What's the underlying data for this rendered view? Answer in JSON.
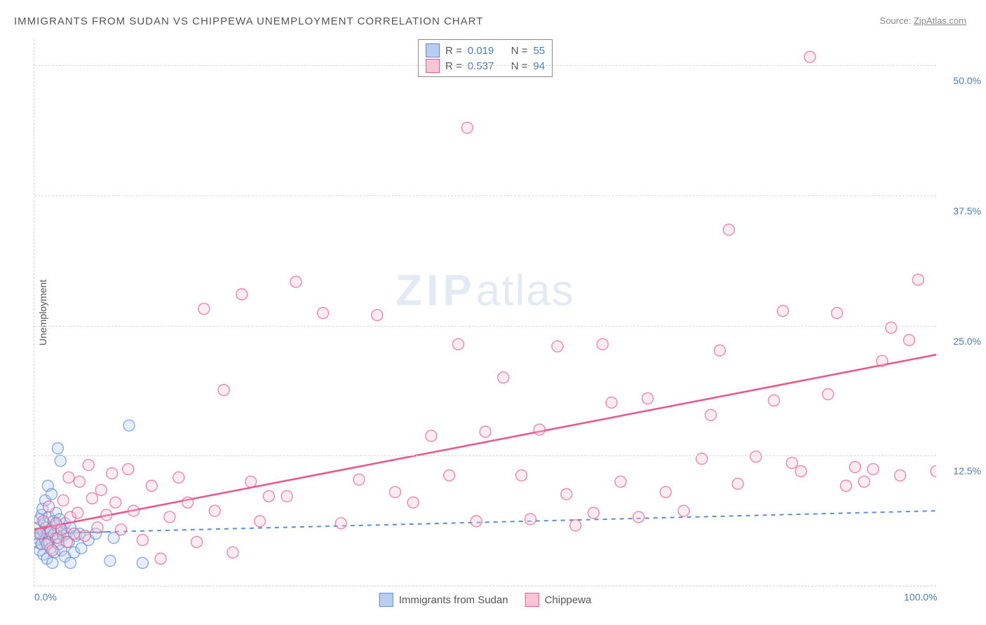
{
  "title": "IMMIGRANTS FROM SUDAN VS CHIPPEWA UNEMPLOYMENT CORRELATION CHART",
  "source_label": "Source:",
  "source_name": "ZipAtlas.com",
  "y_axis_label": "Unemployment",
  "watermark_zip": "ZIP",
  "watermark_atlas": "atlas",
  "chart": {
    "type": "scatter",
    "background_color": "#ffffff",
    "grid_color": "#d8d8d8",
    "grid_dash": "4,4",
    "xlim": [
      0,
      100
    ],
    "ylim": [
      0,
      52.5
    ],
    "x_ticks": [
      {
        "v": 0,
        "label": "0.0%"
      },
      {
        "v": 100,
        "label": "100.0%"
      }
    ],
    "y_ticks": [
      {
        "v": 12.5,
        "label": "12.5%"
      },
      {
        "v": 25.0,
        "label": "25.0%"
      },
      {
        "v": 37.5,
        "label": "37.5%"
      },
      {
        "v": 50.0,
        "label": "50.0%"
      }
    ],
    "tick_label_color": "#4a7ebb",
    "tick_fontsize": 14,
    "marker_radius": 8,
    "marker_opacity": 0.35,
    "marker_stroke_width": 1.4,
    "series": [
      {
        "name": "Immigrants from Sudan",
        "fill": "#b8cef0",
        "stroke": "#5b8dd6",
        "R": "0.019",
        "N": "55",
        "trend": {
          "y0": 5.0,
          "y1": 7.2,
          "stroke": "#5b8dd6",
          "width": 2,
          "dash": "6,6",
          "solid_until_x": 8
        },
        "points": [
          [
            0.2,
            5.0
          ],
          [
            0.3,
            4.6
          ],
          [
            0.5,
            5.6
          ],
          [
            0.5,
            4.1
          ],
          [
            0.6,
            6.4
          ],
          [
            0.6,
            3.4
          ],
          [
            0.7,
            5.0
          ],
          [
            0.8,
            6.8
          ],
          [
            0.8,
            4.0
          ],
          [
            0.9,
            7.4
          ],
          [
            1.0,
            5.2
          ],
          [
            1.0,
            3.0
          ],
          [
            1.1,
            6.0
          ],
          [
            1.2,
            4.4
          ],
          [
            1.2,
            8.2
          ],
          [
            1.3,
            5.6
          ],
          [
            1.4,
            2.6
          ],
          [
            1.5,
            5.0
          ],
          [
            1.5,
            9.6
          ],
          [
            1.6,
            4.2
          ],
          [
            1.6,
            6.6
          ],
          [
            1.8,
            3.6
          ],
          [
            1.8,
            5.4
          ],
          [
            1.9,
            8.8
          ],
          [
            2.0,
            4.8
          ],
          [
            2.0,
            2.2
          ],
          [
            2.1,
            6.2
          ],
          [
            2.2,
            5.0
          ],
          [
            2.2,
            3.2
          ],
          [
            2.4,
            7.0
          ],
          [
            2.4,
            4.6
          ],
          [
            2.5,
            5.8
          ],
          [
            2.6,
            13.2
          ],
          [
            2.7,
            4.0
          ],
          [
            2.8,
            6.4
          ],
          [
            2.9,
            12.0
          ],
          [
            3.0,
            5.2
          ],
          [
            3.0,
            3.4
          ],
          [
            3.2,
            4.8
          ],
          [
            3.4,
            2.8
          ],
          [
            3.4,
            6.0
          ],
          [
            3.6,
            5.0
          ],
          [
            3.8,
            4.2
          ],
          [
            4.0,
            2.2
          ],
          [
            4.0,
            5.6
          ],
          [
            4.4,
            3.2
          ],
          [
            4.6,
            4.8
          ],
          [
            5.0,
            5.0
          ],
          [
            5.2,
            3.6
          ],
          [
            6.0,
            4.4
          ],
          [
            6.8,
            5.0
          ],
          [
            8.4,
            2.4
          ],
          [
            8.8,
            4.6
          ],
          [
            10.5,
            15.4
          ],
          [
            12.0,
            2.2
          ]
        ]
      },
      {
        "name": "Chippewa",
        "fill": "#f6c6d6",
        "stroke": "#e75a8a",
        "R": "0.537",
        "N": "94",
        "trend": {
          "y0": 5.4,
          "y1": 22.2,
          "stroke": "#e75a8a",
          "width": 2.6,
          "dash": null,
          "solid_until_x": 100
        },
        "points": [
          [
            0.6,
            5.0
          ],
          [
            1.0,
            6.2
          ],
          [
            1.4,
            4.0
          ],
          [
            1.6,
            7.6
          ],
          [
            1.8,
            5.2
          ],
          [
            2.0,
            3.4
          ],
          [
            2.4,
            6.0
          ],
          [
            2.6,
            4.6
          ],
          [
            3.0,
            5.4
          ],
          [
            3.2,
            8.2
          ],
          [
            3.6,
            4.2
          ],
          [
            3.8,
            10.4
          ],
          [
            4.0,
            6.6
          ],
          [
            4.4,
            5.0
          ],
          [
            4.8,
            7.0
          ],
          [
            5.0,
            10.0
          ],
          [
            5.6,
            4.8
          ],
          [
            6.0,
            11.6
          ],
          [
            6.4,
            8.4
          ],
          [
            7.0,
            5.6
          ],
          [
            7.4,
            9.2
          ],
          [
            8.0,
            6.8
          ],
          [
            8.6,
            10.8
          ],
          [
            9.0,
            8.0
          ],
          [
            9.6,
            5.4
          ],
          [
            10.4,
            11.2
          ],
          [
            11.0,
            7.2
          ],
          [
            12.0,
            4.4
          ],
          [
            13.0,
            9.6
          ],
          [
            14.0,
            2.6
          ],
          [
            15.0,
            6.6
          ],
          [
            16.0,
            10.4
          ],
          [
            17.0,
            8.0
          ],
          [
            18.0,
            4.2
          ],
          [
            18.8,
            26.6
          ],
          [
            20.0,
            7.2
          ],
          [
            21.0,
            18.8
          ],
          [
            22.0,
            3.2
          ],
          [
            23.0,
            28.0
          ],
          [
            24.0,
            10.0
          ],
          [
            25.0,
            6.2
          ],
          [
            26.0,
            8.6
          ],
          [
            28.0,
            8.6
          ],
          [
            29.0,
            29.2
          ],
          [
            32.0,
            26.2
          ],
          [
            34.0,
            6.0
          ],
          [
            36.0,
            10.2
          ],
          [
            38.0,
            26.0
          ],
          [
            40.0,
            9.0
          ],
          [
            42.0,
            8.0
          ],
          [
            44.0,
            14.4
          ],
          [
            46.0,
            10.6
          ],
          [
            47.0,
            23.2
          ],
          [
            48.0,
            44.0
          ],
          [
            49.0,
            6.2
          ],
          [
            50.0,
            14.8
          ],
          [
            52.0,
            20.0
          ],
          [
            54.0,
            10.6
          ],
          [
            55.0,
            6.4
          ],
          [
            56.0,
            15.0
          ],
          [
            58.0,
            23.0
          ],
          [
            59.0,
            8.8
          ],
          [
            60.0,
            5.8
          ],
          [
            62.0,
            7.0
          ],
          [
            63.0,
            23.2
          ],
          [
            64.0,
            17.6
          ],
          [
            65.0,
            10.0
          ],
          [
            67.0,
            6.6
          ],
          [
            68.0,
            18.0
          ],
          [
            70.0,
            9.0
          ],
          [
            72.0,
            7.2
          ],
          [
            74.0,
            12.2
          ],
          [
            75.0,
            16.4
          ],
          [
            76.0,
            22.6
          ],
          [
            77.0,
            34.2
          ],
          [
            78.0,
            9.8
          ],
          [
            80.0,
            12.4
          ],
          [
            82.0,
            17.8
          ],
          [
            83.0,
            26.4
          ],
          [
            84.0,
            11.8
          ],
          [
            85.0,
            11.0
          ],
          [
            86.0,
            50.8
          ],
          [
            88.0,
            18.4
          ],
          [
            89.0,
            26.2
          ],
          [
            90.0,
            9.6
          ],
          [
            91.0,
            11.4
          ],
          [
            92.0,
            10.0
          ],
          [
            93.0,
            11.2
          ],
          [
            94.0,
            21.6
          ],
          [
            95.0,
            24.8
          ],
          [
            96.0,
            10.6
          ],
          [
            97.0,
            23.6
          ],
          [
            98.0,
            29.4
          ],
          [
            100.0,
            11.0
          ]
        ]
      }
    ]
  },
  "legend_R_label": "R =",
  "legend_N_label": "N ="
}
